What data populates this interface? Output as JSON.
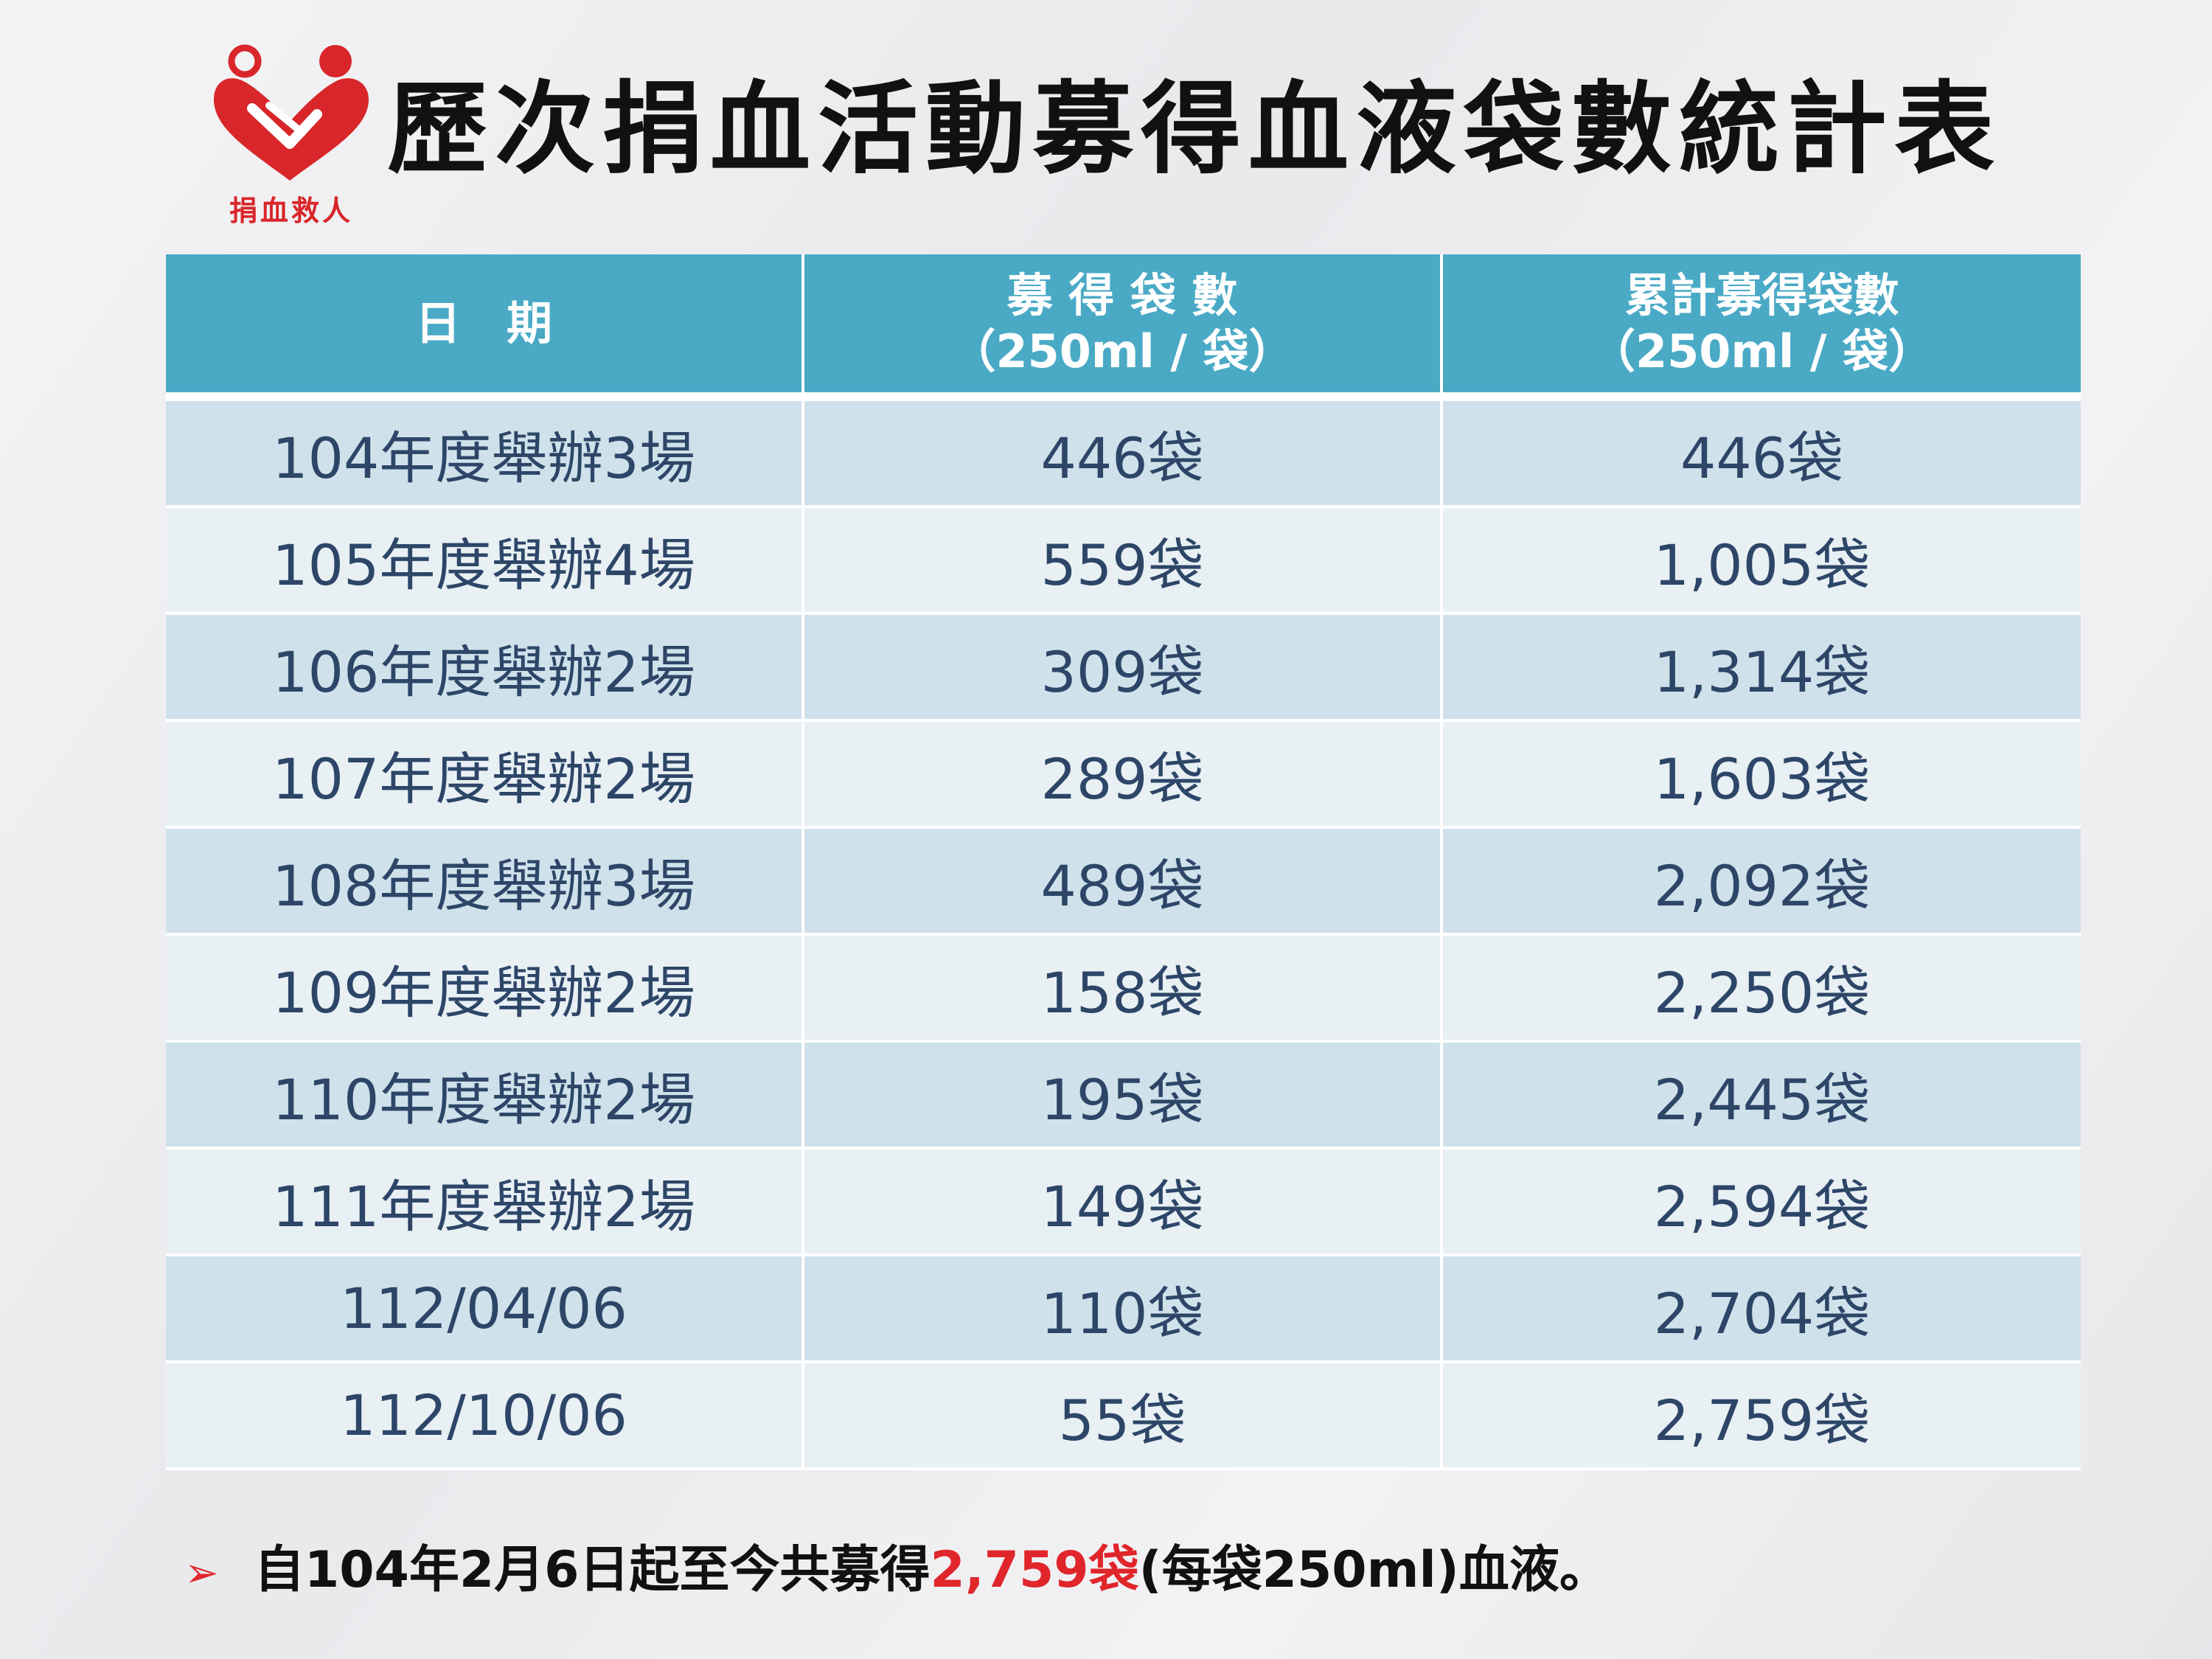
{
  "logo": {
    "text": "捐血救人",
    "icon": "two-people-heart-icon",
    "color": "#d9262a"
  },
  "title": "歷次捐血活動募得血液袋數統計表",
  "table": {
    "header": {
      "col1": "日　期",
      "col2_line1": "募 得 袋 數",
      "col2_line2": "（250ml / 袋）",
      "col3_line1": "累計募得袋數",
      "col3_line2": "（250ml / 袋）"
    },
    "rows": [
      {
        "date": "104年度舉辦3場",
        "bags": "446袋",
        "cumulative": "446袋"
      },
      {
        "date": "105年度舉辦4場",
        "bags": "559袋",
        "cumulative": "1,005袋"
      },
      {
        "date": "106年度舉辦2場",
        "bags": "309袋",
        "cumulative": "1,314袋"
      },
      {
        "date": "107年度舉辦2場",
        "bags": "289袋",
        "cumulative": "1,603袋"
      },
      {
        "date": "108年度舉辦3場",
        "bags": "489袋",
        "cumulative": "2,092袋"
      },
      {
        "date": "109年度舉辦2場",
        "bags": "158袋",
        "cumulative": "2,250袋"
      },
      {
        "date": "110年度舉辦2場",
        "bags": "195袋",
        "cumulative": "2,445袋"
      },
      {
        "date": "111年度舉辦2場",
        "bags": "149袋",
        "cumulative": "2,594袋"
      },
      {
        "date": "112/04/06",
        "bags": "110袋",
        "cumulative": "2,704袋"
      },
      {
        "date": "112/10/06",
        "bags": "55袋",
        "cumulative": "2,759袋"
      }
    ]
  },
  "note": {
    "arrow": "➢",
    "prefix": "自104年2月6日起至今共募得",
    "highlight": "2,759袋",
    "suffix": "(每袋250ml)血液。"
  },
  "colors": {
    "header_bg": "#4aaac6",
    "row_odd": "#cfe1ea",
    "row_even": "#e8f0f4",
    "text": "#2d4668",
    "accent": "#e0262b"
  }
}
